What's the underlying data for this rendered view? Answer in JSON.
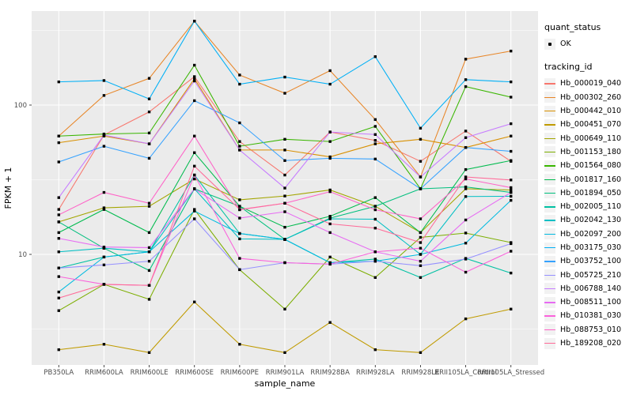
{
  "legend": {
    "quant_status_title": "quant_status",
    "quant_status_item": "OK",
    "tracking_id_title": "tracking_id"
  },
  "chart_data": {
    "type": "line",
    "title": "",
    "xlabel": "sample_name",
    "ylabel": "FPKM + 1",
    "y_scale": "log10",
    "ylim": [
      1.8,
      430
    ],
    "y_major_ticks": [
      100,
      10
    ],
    "y_minor_ticks": [
      3.162,
      31.62,
      316.2
    ],
    "grid": "on",
    "legend_position": "right",
    "point_marker": {
      "shape": "small-black-square",
      "meaning": "quant_status OK"
    },
    "categories": [
      "PB350LA",
      "RRIM600LA",
      "RRIM600LE",
      "RRIM600SE",
      "RRIM600PE",
      "RRIM901LA",
      "RRIM928BA",
      "RRIM928LA",
      "RRIM928LE",
      "RRII105LA_Control",
      "RRII105LA_Stressed"
    ],
    "series": [
      {
        "name": "Hb_000019_040",
        "color": "#F8766D",
        "values": [
          20,
          63,
          90,
          155,
          57,
          34,
          66,
          58,
          42,
          67,
          42
        ]
      },
      {
        "name": "Hb_000302_260",
        "color": "#E88526",
        "values": [
          62,
          116,
          151,
          365,
          159,
          120,
          170,
          80,
          33,
          203,
          230
        ]
      },
      {
        "name": "Hb_000442_010",
        "color": "#D89000",
        "values": [
          56,
          62,
          55,
          150,
          50,
          50,
          45,
          55,
          59,
          52,
          62
        ]
      },
      {
        "name": "Hb_000451_070",
        "color": "#C09B00",
        "values": [
          2.3,
          2.5,
          2.2,
          4.8,
          2.5,
          2.2,
          3.5,
          2.3,
          2.2,
          3.7,
          4.3
        ]
      },
      {
        "name": "Hb_000649_110",
        "color": "#A3A500",
        "values": [
          16.5,
          20.5,
          21,
          32,
          23.2,
          24.6,
          27,
          21,
          14,
          27.5,
          27
        ]
      },
      {
        "name": "Hb_001153_180",
        "color": "#7CAE00",
        "values": [
          4.2,
          6.3,
          5,
          20,
          7.9,
          4.3,
          9.6,
          7,
          13,
          13.9,
          12
        ]
      },
      {
        "name": "Hb_001564_080",
        "color": "#39B600",
        "values": [
          62,
          64,
          65,
          185,
          53,
          59,
          57,
          72,
          27.5,
          133,
          113
        ]
      },
      {
        "name": "Hb_001817_160",
        "color": "#00BB4E",
        "values": [
          14,
          20,
          14,
          48,
          21,
          15.2,
          18,
          24,
          14,
          37,
          42.5
        ]
      },
      {
        "name": "Hb_001894_050",
        "color": "#00BF7D",
        "values": [
          16.5,
          11,
          7.8,
          27.5,
          21,
          12.6,
          17.5,
          21,
          27.5,
          28.3,
          26
        ]
      },
      {
        "name": "Hb_002005_110",
        "color": "#00C1A3",
        "values": [
          8.1,
          9.6,
          10.4,
          34,
          13.8,
          12.6,
          8.8,
          9.3,
          7,
          9.4,
          7.5
        ]
      },
      {
        "name": "Hb_002042_130",
        "color": "#00BFC4",
        "values": [
          10.4,
          11,
          10.4,
          27.5,
          12.7,
          12.6,
          17.3,
          17.2,
          10,
          24.4,
          24.5
        ]
      },
      {
        "name": "Hb_002097_200",
        "color": "#00BAE0",
        "values": [
          5.6,
          9.6,
          10.4,
          19.5,
          13.8,
          12.6,
          8.8,
          9,
          10,
          11.9,
          23
        ]
      },
      {
        "name": "Hb_003175_030",
        "color": "#00B0F6",
        "values": [
          143,
          146,
          110,
          365,
          138,
          154,
          138,
          211,
          70,
          148,
          143
        ]
      },
      {
        "name": "Hb_003752_100",
        "color": "#35A2FF",
        "values": [
          41.6,
          53,
          44,
          107,
          76,
          42.5,
          44,
          43.5,
          27.5,
          52,
          49
        ]
      },
      {
        "name": "Hb_005725_210",
        "color": "#9590FF",
        "values": [
          8.1,
          8.5,
          9,
          17.3,
          7.9,
          8.8,
          8.6,
          9,
          8.4,
          9.3,
          11.8
        ]
      },
      {
        "name": "Hb_006788_140",
        "color": "#C77CFF",
        "values": [
          24,
          63,
          55,
          145,
          50,
          27.8,
          66,
          63.5,
          33,
          60.5,
          75
        ]
      },
      {
        "name": "Hb_008511_100",
        "color": "#E76BF3",
        "values": [
          12.8,
          11.2,
          11.1,
          27.5,
          17.5,
          19.3,
          14,
          10.4,
          9,
          17,
          26
        ]
      },
      {
        "name": "Hb_010381_030",
        "color": "#FA62DB",
        "values": [
          7.1,
          6.3,
          6.2,
          34,
          9.4,
          8.8,
          8.6,
          10.4,
          11,
          7.6,
          10.5
        ]
      },
      {
        "name": "Hb_088753_010",
        "color": "#FF61C7",
        "values": [
          18.4,
          26,
          22,
          62,
          19.9,
          22,
          26.3,
          19.9,
          17.3,
          32,
          28
        ]
      },
      {
        "name": "Hb_189208_020",
        "color": "#FF6A98",
        "values": [
          5.1,
          6.3,
          6.2,
          39,
          20,
          22,
          16,
          15,
          12,
          33,
          31.5
        ]
      }
    ]
  }
}
